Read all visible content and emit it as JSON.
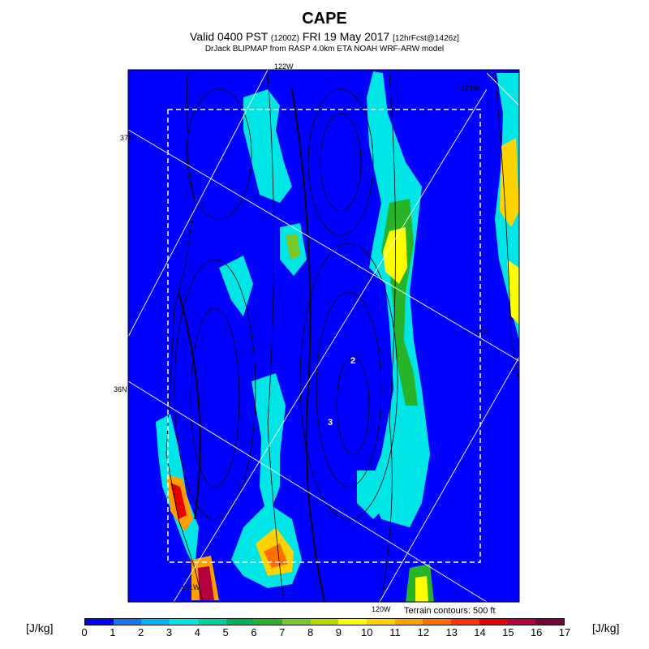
{
  "header": {
    "title": "CAPE",
    "valid_main": "Valid 0400 PST",
    "valid_utc": "(1200Z)",
    "valid_date": "FRI 19 May 2017",
    "forecast_info": "[12hrFcst@1426z]",
    "credit": "DrJack BLIPMAP from RASP 4.0km ETA NOAH WRF-ARW model"
  },
  "map": {
    "lon_labels": {
      "top_122": "122W",
      "top_121": "121W",
      "bottom_121": "121W",
      "bottom_120": "120W"
    },
    "lat_labels": {
      "left_37": "37N",
      "left_36": "36N",
      "right_37": "37N"
    },
    "terrain_contour_values": [
      "2",
      "3"
    ],
    "terrain_note": "Terrain contours: 500 ft"
  },
  "colorbar": {
    "unit": "[J/kg]",
    "ticks": [
      "0",
      "1",
      "2",
      "3",
      "4",
      "5",
      "6",
      "7",
      "8",
      "9",
      "10",
      "11",
      "12",
      "13",
      "14",
      "15",
      "16",
      "17"
    ],
    "colors": [
      "#0000ff",
      "#1478f0",
      "#00b4ff",
      "#00e6e6",
      "#00d2a0",
      "#00b45a",
      "#28b428",
      "#78c828",
      "#b4dc00",
      "#ffff00",
      "#ffd200",
      "#ffa000",
      "#ff6e00",
      "#ff3200",
      "#e60000",
      "#b4003c",
      "#78003c"
    ]
  },
  "palette": {
    "background": "#0000ff",
    "cyan": "#00e6e6",
    "green": "#28b428",
    "yellow": "#ffff00",
    "orange": "#ff8c00",
    "red": "#e60000"
  }
}
